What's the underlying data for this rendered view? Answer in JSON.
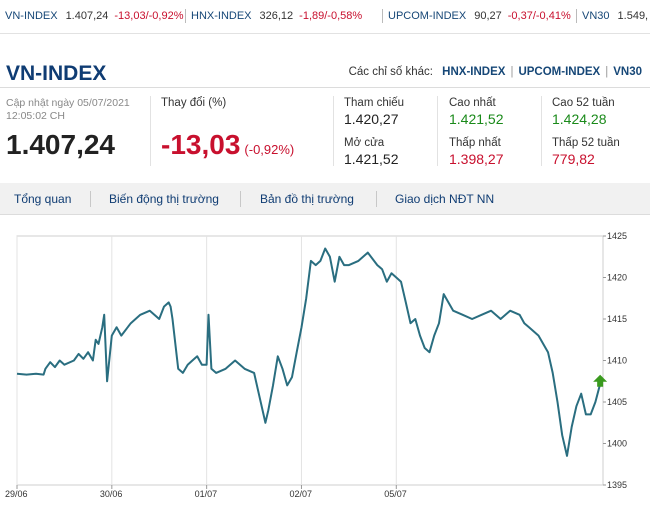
{
  "ticker": [
    {
      "name": "VN-INDEX",
      "price": "1.407,24",
      "change": "-13,03/-0,92%"
    },
    {
      "name": "HNX-INDEX",
      "price": "326,12",
      "change": "-1,89/-0,58%"
    },
    {
      "name": "UPCOM-INDEX",
      "price": "90,27",
      "change": "-0,37/-0,41%"
    },
    {
      "name": "VN30",
      "price": "1.549,",
      "change": ""
    }
  ],
  "header": {
    "title": "VN-INDEX",
    "others_label": "Các chỉ số khác:",
    "other_links": [
      "HNX-INDEX",
      "UPCOM-INDEX",
      "VN30"
    ]
  },
  "summary": {
    "updated_label": "Cập nhật ngày 05/07/2021",
    "updated_time": "12:05:02 CH",
    "last": "1.407,24",
    "change_label": "Thay đổi (%)",
    "change_value": "-13,03",
    "change_pct": "(-0,92%)"
  },
  "stats": {
    "reference": {
      "label": "Tham chiếu",
      "value": "1.420,27"
    },
    "open": {
      "label": "Mở cửa",
      "value": "1.421,52"
    },
    "high": {
      "label": "Cao nhất",
      "value": "1.421,52"
    },
    "low": {
      "label": "Thấp nhất",
      "value": "1.398,27"
    },
    "high52": {
      "label": "Cao 52 tuần",
      "value": "1.424,28"
    },
    "low52": {
      "label": "Thấp 52 tuần",
      "value": "779,82"
    }
  },
  "tabs": [
    "Tổng quan",
    "Biến động thị trường",
    "Bản đồ thị trường",
    "Giao dịch NĐT NN"
  ],
  "colors": {
    "line": "#2a6e80",
    "up_arrow": "#3a9a1e",
    "down": "#c8102e",
    "up": "#1a8a1a",
    "title": "#0f3c73"
  },
  "chart_data": {
    "type": "line",
    "ylim": [
      1395,
      1425
    ],
    "yticks": [
      1395,
      1400,
      1405,
      1410,
      1415,
      1420,
      1425
    ],
    "xlim": [
      0,
      6.18
    ],
    "xticks": [
      {
        "x": 0,
        "label": "29/06"
      },
      {
        "x": 1,
        "label": "30/06"
      },
      {
        "x": 2,
        "label": "01/07"
      },
      {
        "x": 3,
        "label": "02/07"
      },
      {
        "x": 4,
        "label": "05/07"
      }
    ],
    "series": [
      {
        "x": [
          0,
          0.1,
          0.2,
          0.28,
          0.3,
          0.35,
          0.4,
          0.45,
          0.5,
          0.6,
          0.65,
          0.7,
          0.75,
          0.8,
          0.83,
          0.86,
          0.9,
          0.92,
          0.95,
          1.0,
          1.05,
          1.1,
          1.2,
          1.3,
          1.4,
          1.5,
          1.55,
          1.6,
          1.62,
          1.64,
          1.66,
          1.68,
          1.7,
          1.75,
          1.8,
          1.85,
          1.9,
          1.95,
          2.0,
          2.02,
          2.05,
          2.1,
          2.2,
          2.3,
          2.4,
          2.5,
          2.55,
          2.6,
          2.62,
          2.65,
          2.7,
          2.75,
          2.8,
          2.85,
          2.9,
          2.95,
          3.0,
          3.05,
          3.1,
          3.15,
          3.2,
          3.25,
          3.3,
          3.35,
          3.4,
          3.45,
          3.5,
          3.6,
          3.7,
          3.8,
          3.85,
          3.9,
          3.95,
          4.0,
          4.05,
          4.1,
          4.15,
          4.2,
          4.25,
          4.3,
          4.35,
          4.4,
          4.45,
          4.5,
          4.6,
          4.7,
          4.8,
          4.9,
          5.0,
          5.1,
          5.2,
          5.3,
          5.35,
          5.4,
          5.5,
          5.6,
          5.65,
          5.7,
          5.75,
          5.8,
          5.85,
          5.9,
          5.95,
          6.0,
          6.05,
          6.1,
          6.15
        ],
        "values": [
          1408.4,
          1408.3,
          1408.4,
          1408.3,
          1409.0,
          1409.8,
          1409.2,
          1410.0,
          1409.5,
          1410.0,
          1410.8,
          1410.2,
          1411.0,
          1410.0,
          1412.5,
          1412.0,
          1414.0,
          1415.5,
          1407.5,
          1413.0,
          1414.0,
          1413.0,
          1414.5,
          1415.5,
          1416.0,
          1415.0,
          1416.5,
          1417.0,
          1416.5,
          1415.0,
          1413.0,
          1411.0,
          1409.0,
          1408.5,
          1409.5,
          1410.0,
          1410.5,
          1409.5,
          1409.5,
          1415.5,
          1409.0,
          1408.5,
          1409.0,
          1410.0,
          1409.0,
          1408.5,
          1406.0,
          1403.5,
          1402.5,
          1404.0,
          1407.0,
          1410.5,
          1409.0,
          1407.0,
          1408.0,
          1411.0,
          1414.0,
          1417.5,
          1422.0,
          1421.5,
          1422.0,
          1423.5,
          1422.5,
          1419.5,
          1422.5,
          1421.5,
          1421.5,
          1422.0,
          1423.0,
          1421.5,
          1421.0,
          1419.5,
          1420.5,
          1420.0,
          1419.5,
          1417.0,
          1414.5,
          1415.0,
          1413.0,
          1411.5,
          1411.0,
          1413.0,
          1414.5,
          1418.0,
          1416.0,
          1415.5,
          1415.0,
          1415.5,
          1416.0,
          1415.0,
          1416.0,
          1415.5,
          1414.5,
          1414.0,
          1413.0,
          1411.0,
          1408.5,
          1405.0,
          1401.0,
          1398.5,
          1402.0,
          1404.5,
          1406.0,
          1403.5,
          1403.5,
          1405.0,
          1407.2
        ]
      }
    ]
  }
}
